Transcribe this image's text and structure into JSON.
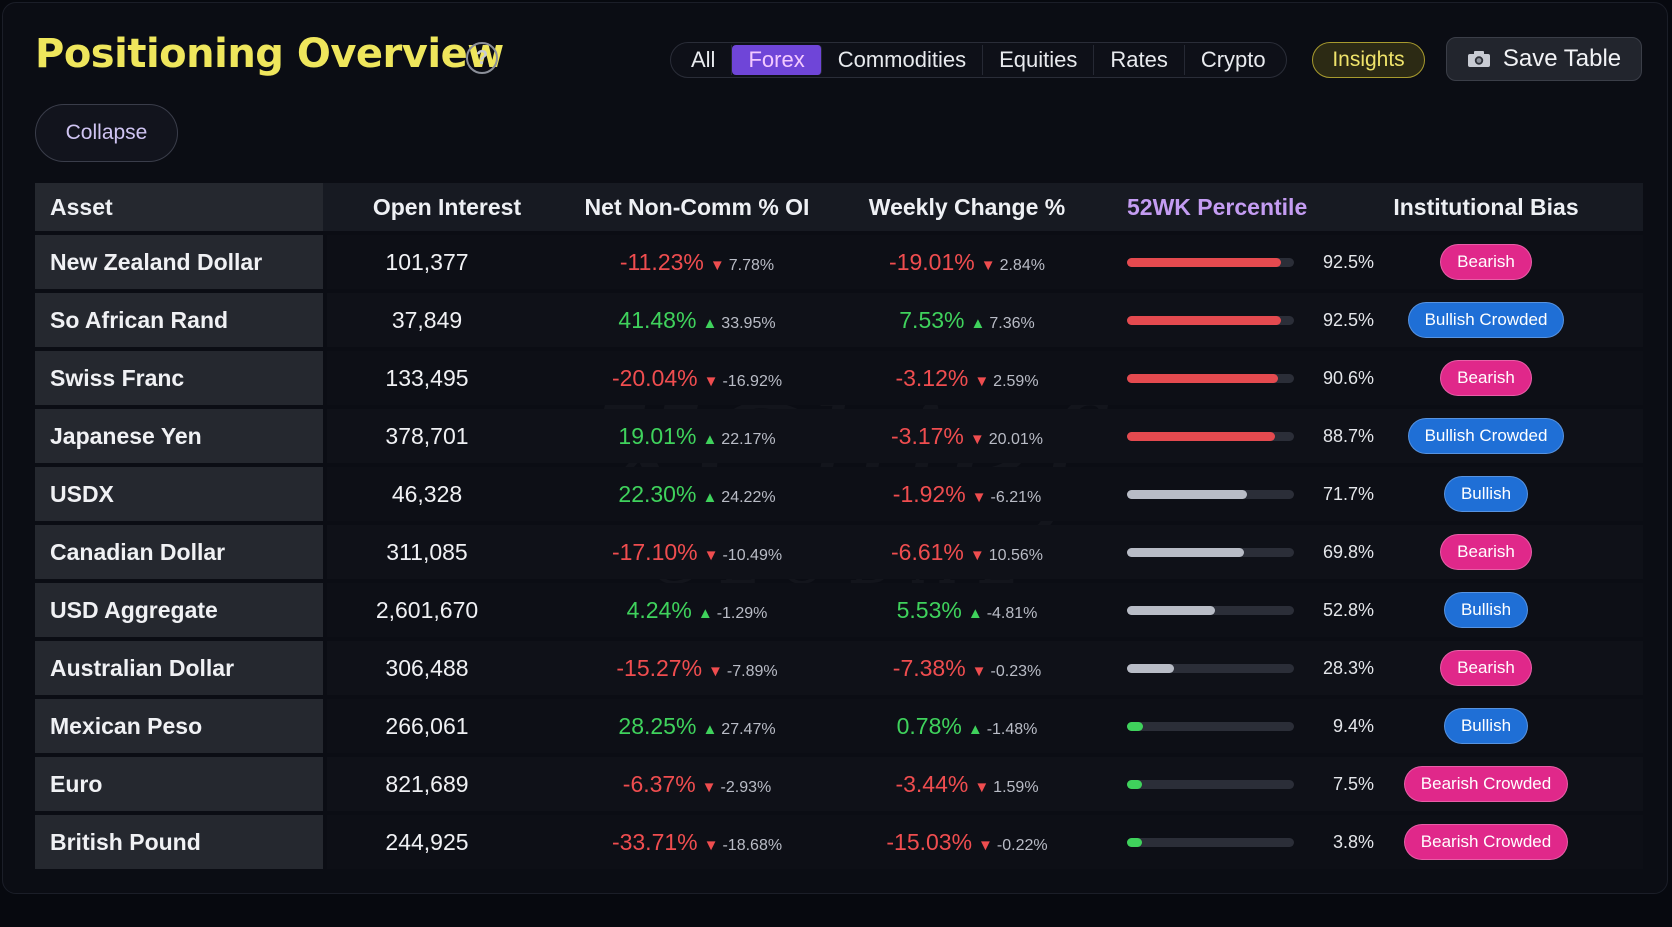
{
  "header": {
    "title": "Positioning Overview",
    "help": "?",
    "tabs": [
      {
        "label": "All",
        "active": false
      },
      {
        "label": "Forex",
        "active": true
      },
      {
        "label": "Commodities",
        "active": false
      },
      {
        "label": "Equities",
        "active": false
      },
      {
        "label": "Rates",
        "active": false
      },
      {
        "label": "Crypto",
        "active": false
      }
    ],
    "insights_label": "Insights",
    "save_label": "Save Table",
    "save_icon": "camera-icon",
    "collapse_label": "Collapse"
  },
  "watermark": {
    "line1": "XChief",
    "line2": "GLOBAL"
  },
  "colors": {
    "title": "#efe65c",
    "accent": "#6f45d8",
    "positive": "#3fd25c",
    "negative": "#ef4d4f",
    "bar_high": "#e44a4f",
    "bar_mid": "#b8bcc6",
    "bar_low": "#3fd25c",
    "bearish": "#e0288a",
    "bullish": "#1f6fd6"
  },
  "table": {
    "columns": [
      "Asset",
      "Open Interest",
      "Net Non-Comm % OI",
      "Weekly Change %",
      "52WK Percentile",
      "Institutional Bias"
    ],
    "rows": [
      {
        "asset": "New Zealand Dollar",
        "oi": "101,377",
        "net": "-11.23%",
        "net_dir": "down",
        "net_chg": "7.78%",
        "wk": "-19.01%",
        "wk_dir": "down",
        "wk_chg": "2.84%",
        "pct": 92.5,
        "pct_label": "92.5%",
        "bias": "Bearish"
      },
      {
        "asset": "So African Rand",
        "oi": "37,849",
        "net": "41.48%",
        "net_dir": "up",
        "net_chg": "33.95%",
        "wk": "7.53%",
        "wk_dir": "up",
        "wk_chg": "7.36%",
        "pct": 92.5,
        "pct_label": "92.5%",
        "bias": "Bullish Crowded"
      },
      {
        "asset": "Swiss Franc",
        "oi": "133,495",
        "net": "-20.04%",
        "net_dir": "down",
        "net_chg": "-16.92%",
        "wk": "-3.12%",
        "wk_dir": "down",
        "wk_chg": "2.59%",
        "pct": 90.6,
        "pct_label": "90.6%",
        "bias": "Bearish"
      },
      {
        "asset": "Japanese Yen",
        "oi": "378,701",
        "net": "19.01%",
        "net_dir": "up",
        "net_chg": "22.17%",
        "wk": "-3.17%",
        "wk_dir": "down",
        "wk_chg": "20.01%",
        "pct": 88.7,
        "pct_label": "88.7%",
        "bias": "Bullish Crowded"
      },
      {
        "asset": "USDX",
        "oi": "46,328",
        "net": "22.30%",
        "net_dir": "up",
        "net_chg": "24.22%",
        "wk": "-1.92%",
        "wk_dir": "down",
        "wk_chg": "-6.21%",
        "pct": 71.7,
        "pct_label": "71.7%",
        "bias": "Bullish"
      },
      {
        "asset": "Canadian Dollar",
        "oi": "311,085",
        "net": "-17.10%",
        "net_dir": "down",
        "net_chg": "-10.49%",
        "wk": "-6.61%",
        "wk_dir": "down",
        "wk_chg": "10.56%",
        "pct": 69.8,
        "pct_label": "69.8%",
        "bias": "Bearish"
      },
      {
        "asset": "USD Aggregate",
        "oi": "2,601,670",
        "net": "4.24%",
        "net_dir": "up",
        "net_chg": "-1.29%",
        "wk": "5.53%",
        "wk_dir": "up",
        "wk_chg": "-4.81%",
        "pct": 52.8,
        "pct_label": "52.8%",
        "bias": "Bullish"
      },
      {
        "asset": "Australian Dollar",
        "oi": "306,488",
        "net": "-15.27%",
        "net_dir": "down",
        "net_chg": "-7.89%",
        "wk": "-7.38%",
        "wk_dir": "down",
        "wk_chg": "-0.23%",
        "pct": 28.3,
        "pct_label": "28.3%",
        "bias": "Bearish"
      },
      {
        "asset": "Mexican Peso",
        "oi": "266,061",
        "net": "28.25%",
        "net_dir": "up",
        "net_chg": "27.47%",
        "wk": "0.78%",
        "wk_dir": "up",
        "wk_chg": "-1.48%",
        "pct": 9.4,
        "pct_label": "9.4%",
        "bias": "Bullish"
      },
      {
        "asset": "Euro",
        "oi": "821,689",
        "net": "-6.37%",
        "net_dir": "down",
        "net_chg": "-2.93%",
        "wk": "-3.44%",
        "wk_dir": "down",
        "wk_chg": "1.59%",
        "pct": 7.5,
        "pct_label": "7.5%",
        "bias": "Bearish Crowded"
      },
      {
        "asset": "British Pound",
        "oi": "244,925",
        "net": "-33.71%",
        "net_dir": "down",
        "net_chg": "-18.68%",
        "wk": "-15.03%",
        "wk_dir": "down",
        "wk_chg": "-0.22%",
        "pct": 3.8,
        "pct_label": "3.8%",
        "bias": "Bearish Crowded"
      }
    ]
  }
}
